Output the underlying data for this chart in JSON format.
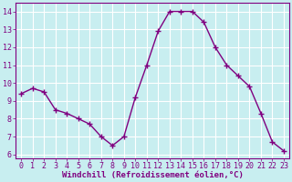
{
  "x": [
    0,
    1,
    2,
    3,
    4,
    5,
    6,
    7,
    8,
    9,
    10,
    11,
    12,
    13,
    14,
    15,
    16,
    17,
    18,
    19,
    20,
    21,
    22,
    23
  ],
  "y": [
    9.4,
    9.7,
    9.5,
    8.5,
    8.3,
    8.0,
    7.7,
    7.0,
    6.5,
    7.0,
    9.2,
    11.0,
    12.9,
    14.0,
    14.0,
    14.0,
    13.4,
    12.0,
    11.0,
    10.4,
    9.8,
    8.3,
    6.7,
    6.2
  ],
  "line_color": "#800080",
  "marker": "+",
  "marker_size": 4,
  "bg_color": "#c8eef0",
  "grid_color": "#ffffff",
  "xlabel": "Windchill (Refroidissement éolien,°C)",
  "xlabel_color": "#800080",
  "tick_color": "#800080",
  "spine_color": "#800080",
  "ylim": [
    5.8,
    14.5
  ],
  "xlim": [
    -0.5,
    23.5
  ],
  "yticks": [
    6,
    7,
    8,
    9,
    10,
    11,
    12,
    13,
    14
  ],
  "xticks": [
    0,
    1,
    2,
    3,
    4,
    5,
    6,
    7,
    8,
    9,
    10,
    11,
    12,
    13,
    14,
    15,
    16,
    17,
    18,
    19,
    20,
    21,
    22,
    23
  ],
  "linewidth": 1.0,
  "tick_fontsize": 6.0,
  "xlabel_fontsize": 6.5,
  "xlabel_fontweight": "bold"
}
